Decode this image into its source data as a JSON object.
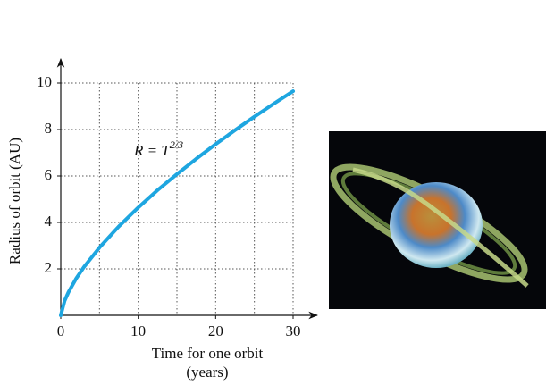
{
  "chart_data": {
    "type": "line",
    "x_label": "Time for one orbit",
    "x_label_unit": "(years)",
    "y_label": "Radius of orbit (AU)",
    "annotation": "R = T",
    "annotation_exponent": "2/3",
    "x": [
      0,
      0.5,
      1,
      2,
      3,
      5,
      7.5,
      10,
      12.5,
      15,
      17.5,
      20,
      22.5,
      25,
      27.5,
      30
    ],
    "series": [
      {
        "color": "#1ea6e0",
        "values": [
          0,
          0.63,
          1,
          1.59,
          2.08,
          2.92,
          3.83,
          4.64,
          5.39,
          6.08,
          6.74,
          7.37,
          7.97,
          8.55,
          9.11,
          9.65
        ]
      }
    ],
    "xlim": [
      0,
      30
    ],
    "ylim": [
      0,
      10
    ],
    "xticks": [
      0,
      10,
      20,
      30
    ],
    "xminor": [
      5,
      15,
      25
    ],
    "yticks": [
      2,
      4,
      6,
      8,
      10
    ],
    "grid": true
  }
}
